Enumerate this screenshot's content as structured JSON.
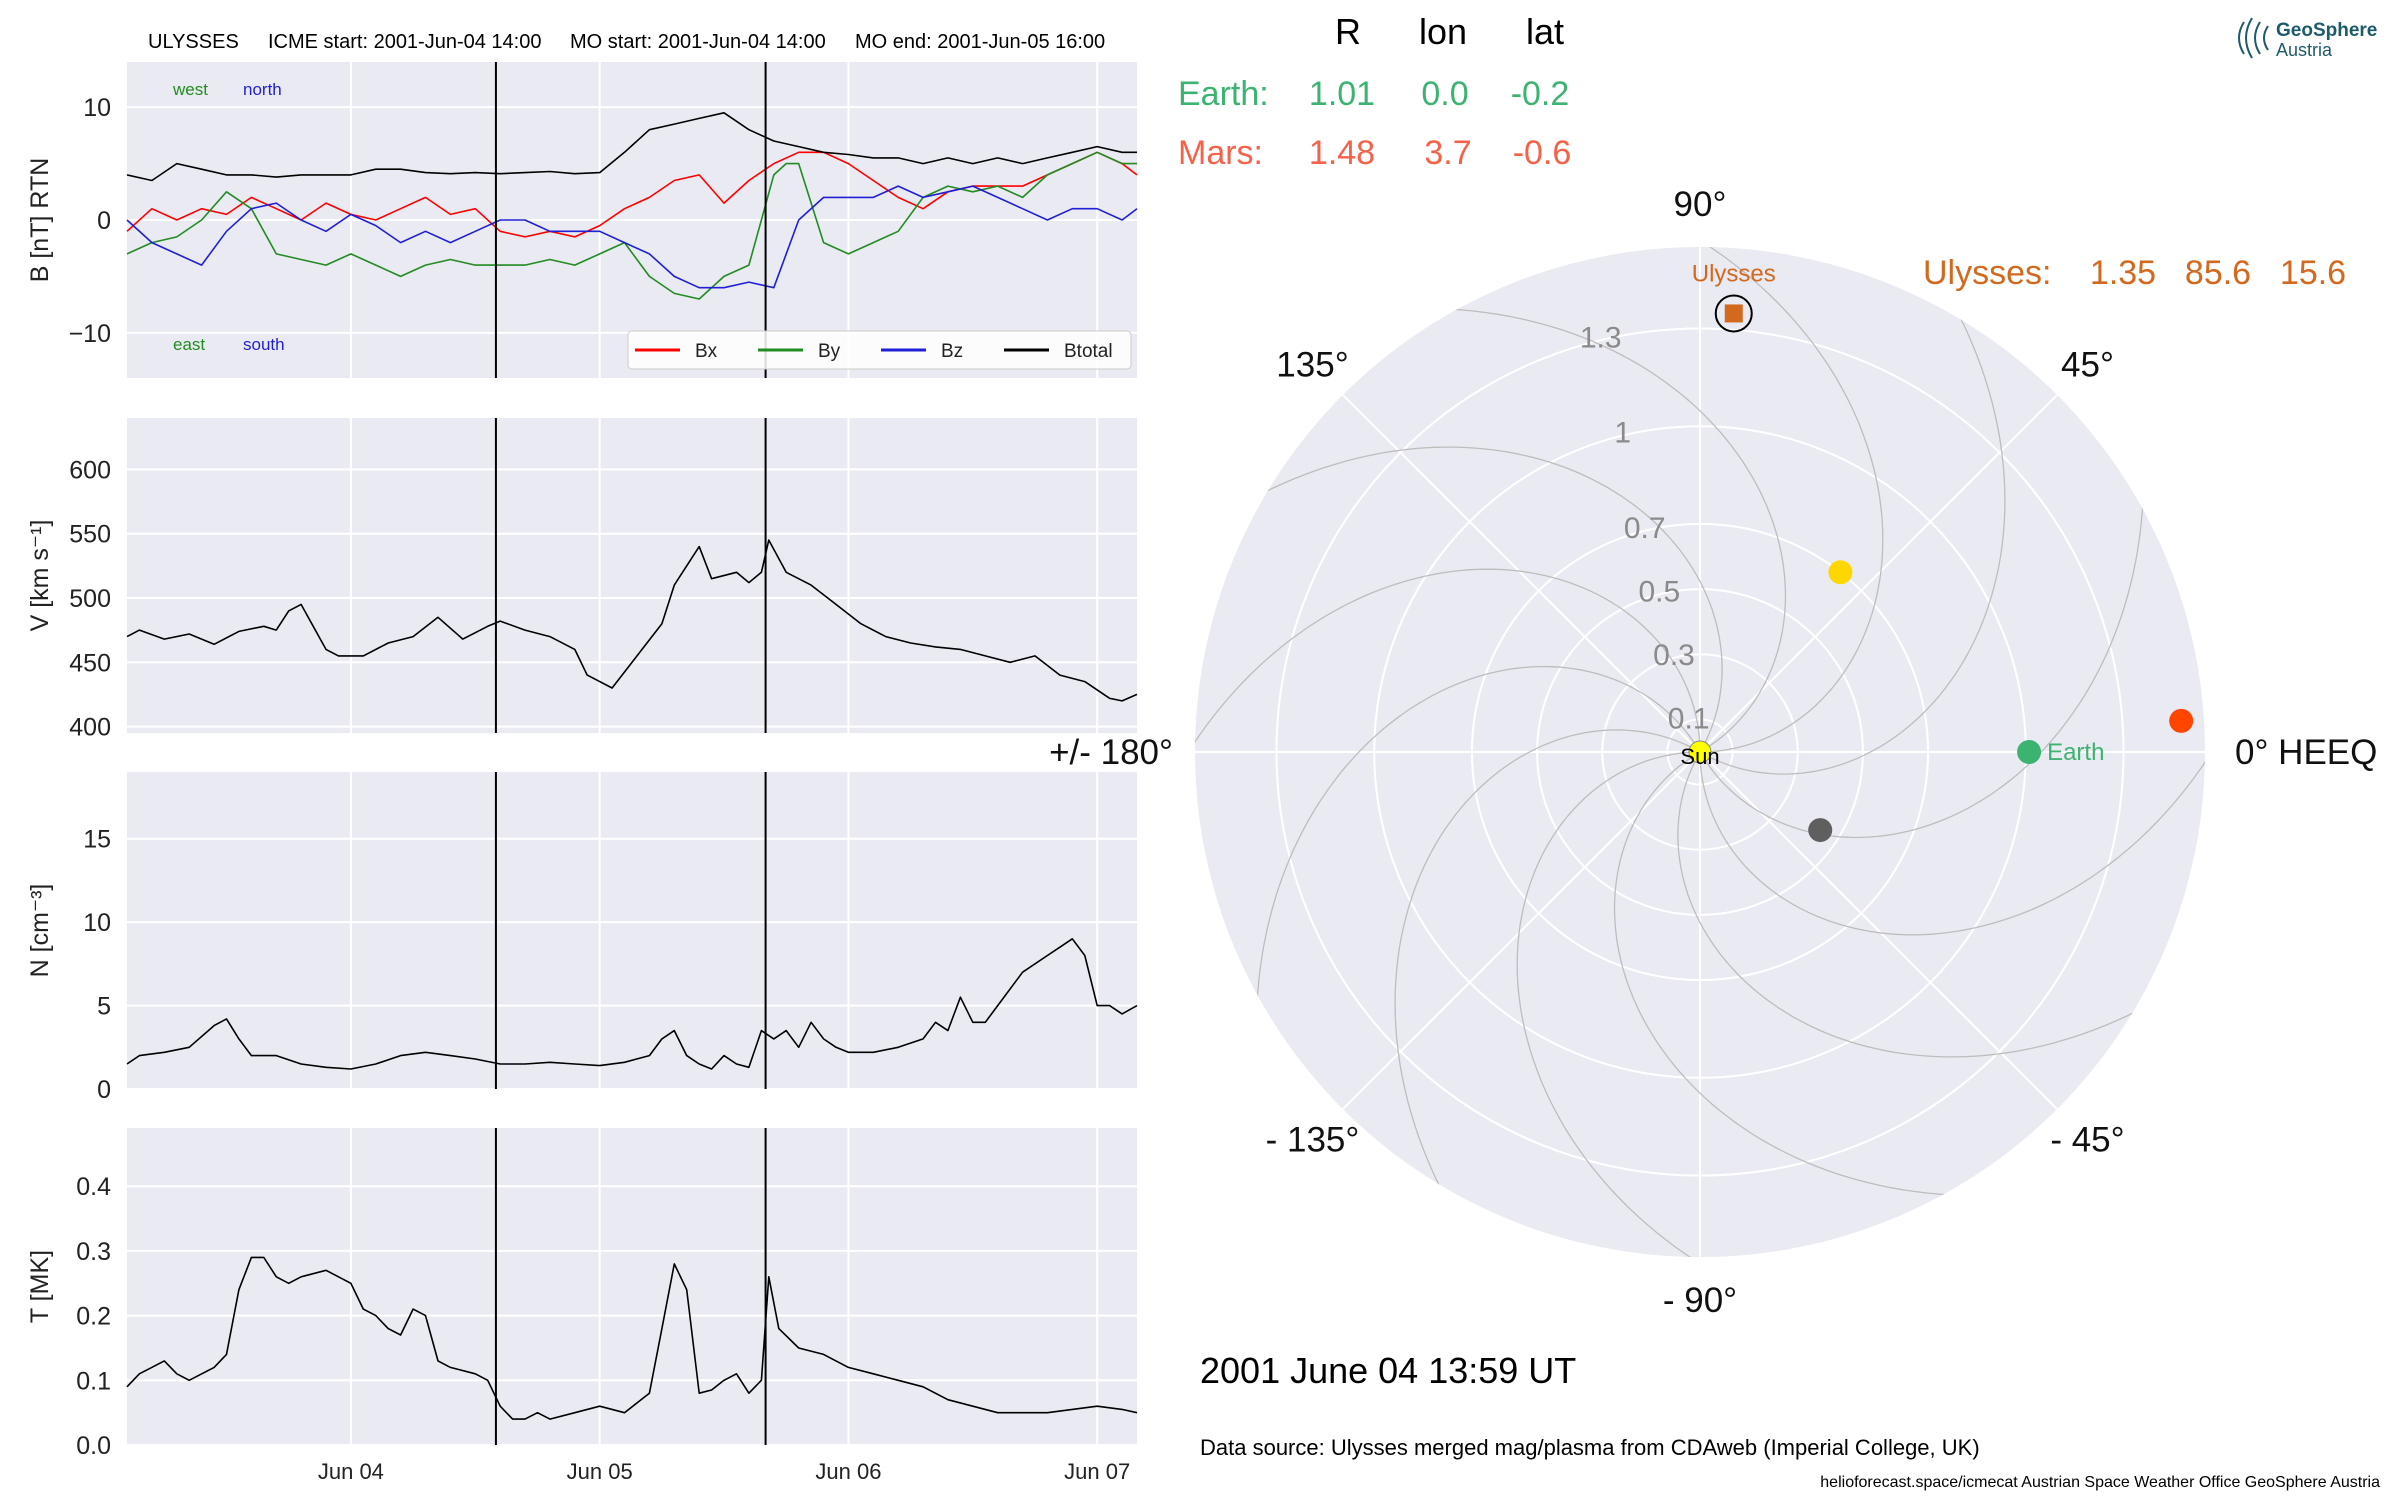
{
  "header": {
    "spacecraft": "ULYSSES",
    "icme_start": "ICME start: 2001-Jun-04 14:00",
    "mo_start": "MO start: 2001-Jun-04 14:00",
    "mo_end": "MO end: 2001-Jun-05 16:00"
  },
  "logo": {
    "line1": "GeoSphere",
    "line2": "Austria"
  },
  "positions_table": {
    "headers": [
      "R",
      "lon",
      "lat"
    ],
    "rows": [
      {
        "label": "Earth:",
        "R": "1.01",
        "lon": "0.0",
        "lat": "-0.2",
        "color": "#3cb371"
      },
      {
        "label": "Mars:",
        "R": "1.48",
        "lon": "3.7",
        "lat": "-0.6",
        "color": "#f4624a"
      }
    ],
    "ulysses": {
      "label": "Ulysses:",
      "R": "1.35",
      "lon": "85.6",
      "lat": "15.6",
      "color": "#d2691e"
    }
  },
  "timestamp": "2001 June 04  13:59 UT",
  "data_source": "Data source: Ulysses merged mag/plasma from CDAweb (Imperial College, UK)",
  "footer": "helioforecast.space/icmecat   Austrian Space Weather Office   GeoSphere Austria",
  "chart_data": [
    {
      "type": "line",
      "panel": "magnetic-field",
      "ylabel": "B [nT] RTN",
      "ylim": [
        -14,
        14
      ],
      "yticks": [
        10,
        0,
        -10
      ],
      "ytick_labels": [
        "10",
        "0",
        "−10"
      ],
      "xlim": [
        3.1,
        7.16
      ],
      "xticks": [
        4,
        5,
        6,
        7
      ],
      "xtick_labels": [
        "Jun 04",
        "Jun 05",
        "Jun 06",
        "Jun 07"
      ],
      "x_unit": "day of June 2001",
      "vlines": [
        4.583,
        5.667
      ],
      "labels": [
        {
          "text": "west",
          "color": "#228b22",
          "pos": "top-left"
        },
        {
          "text": "north",
          "color": "#1f1fd6",
          "pos": "top-left"
        },
        {
          "text": "east",
          "color": "#228b22",
          "pos": "bottom-left"
        },
        {
          "text": "south",
          "color": "#1f1fd6",
          "pos": "bottom-left"
        }
      ],
      "legend_position": "lower-right",
      "series": [
        {
          "name": "Bx",
          "color": "#ff0000",
          "x": [
            3.1,
            3.2,
            3.3,
            3.4,
            3.5,
            3.6,
            3.7,
            3.8,
            3.9,
            4.0,
            4.1,
            4.2,
            4.3,
            4.4,
            4.5,
            4.6,
            4.7,
            4.8,
            4.9,
            5.0,
            5.1,
            5.2,
            5.3,
            5.4,
            5.5,
            5.6,
            5.7,
            5.8,
            5.9,
            6.0,
            6.1,
            6.2,
            6.3,
            6.4,
            6.5,
            6.6,
            6.7,
            6.8,
            6.9,
            7.0,
            7.1,
            7.16
          ],
          "values": [
            -1,
            1,
            0,
            1,
            0.5,
            2,
            1,
            0,
            1.5,
            0.5,
            0,
            1,
            2,
            0.5,
            1,
            -1,
            -1.5,
            -1,
            -1.5,
            -0.5,
            1,
            2,
            3.5,
            4,
            1.5,
            3.5,
            5,
            6,
            6,
            5,
            3.5,
            2,
            1,
            2.5,
            3,
            3,
            3,
            4,
            5,
            6,
            5,
            4
          ]
        },
        {
          "name": "By",
          "color": "#228b22",
          "x": [
            3.1,
            3.2,
            3.3,
            3.4,
            3.5,
            3.6,
            3.7,
            3.8,
            3.9,
            4.0,
            4.1,
            4.2,
            4.3,
            4.4,
            4.5,
            4.6,
            4.7,
            4.8,
            4.9,
            5.0,
            5.1,
            5.2,
            5.3,
            5.4,
            5.5,
            5.6,
            5.65,
            5.7,
            5.75,
            5.8,
            5.9,
            6.0,
            6.1,
            6.2,
            6.3,
            6.4,
            6.5,
            6.6,
            6.7,
            6.8,
            6.9,
            7.0,
            7.1,
            7.16
          ],
          "values": [
            -3,
            -2,
            -1.5,
            0,
            2.5,
            1,
            -3,
            -3.5,
            -4,
            -3,
            -4,
            -5,
            -4,
            -3.5,
            -4,
            -4,
            -4,
            -3.5,
            -4,
            -3,
            -2,
            -5,
            -6.5,
            -7,
            -5,
            -4,
            0,
            4,
            5,
            5,
            -2,
            -3,
            -2,
            -1,
            2,
            3,
            2.5,
            3,
            2,
            4,
            5,
            6,
            5,
            5
          ]
        },
        {
          "name": "Bz",
          "color": "#1f1fd6",
          "x": [
            3.1,
            3.2,
            3.3,
            3.4,
            3.5,
            3.6,
            3.7,
            3.8,
            3.9,
            4.0,
            4.1,
            4.2,
            4.3,
            4.4,
            4.5,
            4.6,
            4.7,
            4.8,
            4.9,
            5.0,
            5.1,
            5.2,
            5.3,
            5.4,
            5.5,
            5.6,
            5.7,
            5.8,
            5.9,
            6.0,
            6.1,
            6.2,
            6.3,
            6.4,
            6.5,
            6.6,
            6.7,
            6.8,
            6.9,
            7.0,
            7.1,
            7.16
          ],
          "values": [
            0,
            -2,
            -3,
            -4,
            -1,
            1,
            1.5,
            0,
            -1,
            0.5,
            -0.5,
            -2,
            -1,
            -2,
            -1,
            0,
            0,
            -1,
            -1,
            -1,
            -2,
            -3,
            -5,
            -6,
            -6,
            -5.5,
            -6,
            0,
            2,
            2,
            2,
            3,
            2,
            2.5,
            3,
            2,
            1,
            0,
            1,
            1,
            0,
            1
          ]
        },
        {
          "name": "Btotal",
          "color": "#000000",
          "x": [
            3.1,
            3.2,
            3.3,
            3.4,
            3.5,
            3.6,
            3.7,
            3.8,
            3.9,
            4.0,
            4.1,
            4.2,
            4.3,
            4.4,
            4.5,
            4.6,
            4.7,
            4.8,
            4.9,
            5.0,
            5.1,
            5.2,
            5.3,
            5.4,
            5.5,
            5.6,
            5.7,
            5.8,
            5.9,
            6.0,
            6.1,
            6.2,
            6.3,
            6.4,
            6.5,
            6.6,
            6.7,
            6.8,
            6.9,
            7.0,
            7.1,
            7.16
          ],
          "values": [
            4,
            3.5,
            5,
            4.5,
            4,
            4,
            3.8,
            4,
            4,
            4,
            4.5,
            4.5,
            4.2,
            4.1,
            4.2,
            4.1,
            4.2,
            4.3,
            4.1,
            4.2,
            6,
            8,
            8.5,
            9,
            9.5,
            8,
            7,
            6.5,
            6,
            5.8,
            5.5,
            5.5,
            5,
            5.5,
            5,
            5.5,
            5,
            5.5,
            6,
            6.5,
            6,
            6
          ]
        }
      ]
    },
    {
      "type": "line",
      "panel": "speed",
      "ylabel": "V [km s⁻¹]",
      "ylim": [
        395,
        640
      ],
      "yticks": [
        400,
        450,
        500,
        550,
        600
      ],
      "xlim": [
        3.1,
        7.16
      ],
      "xticks": [
        4,
        5,
        6,
        7
      ],
      "vlines": [
        4.583,
        5.667
      ],
      "series": [
        {
          "name": "V",
          "color": "#000000",
          "x": [
            3.1,
            3.15,
            3.25,
            3.35,
            3.45,
            3.55,
            3.65,
            3.7,
            3.75,
            3.8,
            3.9,
            3.95,
            4.05,
            4.15,
            4.25,
            4.35,
            4.45,
            4.55,
            4.6,
            4.7,
            4.8,
            4.9,
            4.95,
            5.05,
            5.15,
            5.25,
            5.3,
            5.4,
            5.45,
            5.55,
            5.6,
            5.65,
            5.68,
            5.75,
            5.85,
            5.95,
            6.05,
            6.15,
            6.25,
            6.35,
            6.45,
            6.55,
            6.65,
            6.75,
            6.85,
            6.95,
            7.05,
            7.1,
            7.16
          ],
          "values": [
            470,
            475,
            468,
            472,
            464,
            474,
            478,
            475,
            490,
            495,
            460,
            455,
            455,
            465,
            470,
            485,
            468,
            478,
            482,
            475,
            470,
            460,
            440,
            430,
            455,
            480,
            510,
            540,
            515,
            520,
            512,
            520,
            545,
            520,
            510,
            495,
            480,
            470,
            465,
            462,
            460,
            455,
            450,
            455,
            440,
            435,
            422,
            420,
            425
          ]
        }
      ]
    },
    {
      "type": "line",
      "panel": "density",
      "ylabel": "N [cm⁻³]",
      "ylim": [
        0,
        19
      ],
      "yticks": [
        0,
        5,
        10,
        15
      ],
      "xlim": [
        3.1,
        7.16
      ],
      "xticks": [
        4,
        5,
        6,
        7
      ],
      "vlines": [
        4.583,
        5.667
      ],
      "series": [
        {
          "name": "N",
          "color": "#000000",
          "x": [
            3.1,
            3.15,
            3.25,
            3.35,
            3.45,
            3.5,
            3.55,
            3.6,
            3.7,
            3.8,
            3.9,
            4.0,
            4.1,
            4.2,
            4.3,
            4.4,
            4.5,
            4.6,
            4.7,
            4.8,
            4.9,
            5.0,
            5.1,
            5.2,
            5.25,
            5.3,
            5.35,
            5.4,
            5.45,
            5.5,
            5.55,
            5.6,
            5.65,
            5.7,
            5.75,
            5.8,
            5.85,
            5.9,
            5.95,
            6.0,
            6.1,
            6.2,
            6.3,
            6.35,
            6.4,
            6.45,
            6.5,
            6.55,
            6.6,
            6.7,
            6.8,
            6.85,
            6.9,
            6.95,
            7.0,
            7.05,
            7.1,
            7.16
          ],
          "values": [
            1.5,
            2,
            2.2,
            2.5,
            3.8,
            4.2,
            3,
            2,
            2,
            1.5,
            1.3,
            1.2,
            1.5,
            2,
            2.2,
            2,
            1.8,
            1.5,
            1.5,
            1.6,
            1.5,
            1.4,
            1.6,
            2,
            3,
            3.5,
            2,
            1.5,
            1.2,
            2,
            1.5,
            1.3,
            3.5,
            3,
            3.5,
            2.5,
            4,
            3,
            2.5,
            2.2,
            2.2,
            2.5,
            3,
            4,
            3.5,
            5.5,
            4,
            4,
            5,
            7,
            8,
            8.5,
            9,
            8,
            5,
            5,
            4.5,
            5
          ]
        }
      ]
    },
    {
      "type": "line",
      "panel": "temperature",
      "ylabel": "T [MK]",
      "ylim": [
        0,
        0.49
      ],
      "yticks": [
        0.0,
        0.1,
        0.2,
        0.3,
        0.4
      ],
      "ytick_labels": [
        "0.0",
        "0.1",
        "0.2",
        "0.3",
        "0.4"
      ],
      "xlim": [
        3.1,
        7.16
      ],
      "xticks": [
        4,
        5,
        6,
        7
      ],
      "xtick_labels": [
        "Jun 04",
        "Jun 05",
        "Jun 06",
        "Jun 07"
      ],
      "vlines": [
        4.583,
        5.667
      ],
      "series": [
        {
          "name": "T",
          "color": "#000000",
          "x": [
            3.1,
            3.15,
            3.25,
            3.3,
            3.35,
            3.45,
            3.5,
            3.55,
            3.6,
            3.65,
            3.7,
            3.75,
            3.8,
            3.9,
            4.0,
            4.05,
            4.1,
            4.15,
            4.2,
            4.25,
            4.3,
            4.35,
            4.4,
            4.5,
            4.55,
            4.6,
            4.65,
            4.7,
            4.75,
            4.8,
            4.9,
            5.0,
            5.1,
            5.2,
            5.25,
            5.3,
            5.35,
            5.4,
            5.45,
            5.5,
            5.55,
            5.6,
            5.65,
            5.68,
            5.72,
            5.8,
            5.9,
            6.0,
            6.1,
            6.2,
            6.3,
            6.4,
            6.5,
            6.6,
            6.7,
            6.8,
            6.9,
            7.0,
            7.1,
            7.16
          ],
          "values": [
            0.09,
            0.11,
            0.13,
            0.11,
            0.1,
            0.12,
            0.14,
            0.24,
            0.29,
            0.29,
            0.26,
            0.25,
            0.26,
            0.27,
            0.25,
            0.21,
            0.2,
            0.18,
            0.17,
            0.21,
            0.2,
            0.13,
            0.12,
            0.11,
            0.1,
            0.06,
            0.04,
            0.04,
            0.05,
            0.04,
            0.05,
            0.06,
            0.05,
            0.08,
            0.18,
            0.28,
            0.24,
            0.08,
            0.085,
            0.1,
            0.11,
            0.08,
            0.1,
            0.26,
            0.18,
            0.15,
            0.14,
            0.12,
            0.11,
            0.1,
            0.09,
            0.07,
            0.06,
            0.05,
            0.05,
            0.05,
            0.055,
            0.06,
            0.055,
            0.05
          ]
        }
      ]
    },
    {
      "type": "scatter",
      "panel": "polar-heeq",
      "projection": "polar",
      "rlim": [
        0,
        1.55
      ],
      "r_tick_values": [
        0.1,
        0.3,
        0.5,
        0.7,
        1.0,
        1.3
      ],
      "angle_labels": [
        {
          "angle": 0,
          "text": "0° HEEQ"
        },
        {
          "angle": 45,
          "text": "45°"
        },
        {
          "angle": 90,
          "text": "90°"
        },
        {
          "angle": 135,
          "text": "135°"
        },
        {
          "angle": 180,
          "text": "+/- 180°"
        },
        {
          "angle": -135,
          "text": "- 135°"
        },
        {
          "angle": -90,
          "text": "- 90°"
        },
        {
          "angle": -45,
          "text": "- 45°"
        }
      ],
      "points": [
        {
          "name": "Sun",
          "r": 0,
          "lon": 0,
          "color": "#ffff00",
          "shape": "circle"
        },
        {
          "name": "Earth",
          "r": 1.01,
          "lon": 0.0,
          "color": "#3cb371",
          "shape": "circle"
        },
        {
          "name": "Mars",
          "r": 1.48,
          "lon": 3.7,
          "color": "#ff4500",
          "shape": "circle"
        },
        {
          "name": "Ulysses",
          "r": 1.35,
          "lon": 85.6,
          "color": "#d2691e",
          "shape": "square"
        },
        {
          "name": "",
          "r": 0.7,
          "lon": 52,
          "color": "#ffd700",
          "shape": "circle"
        },
        {
          "name": "",
          "r": 0.44,
          "lon": -33,
          "color": "#5f5f5f",
          "shape": "circle"
        }
      ],
      "point_labels": [
        "Sun",
        "Earth",
        "Ulysses"
      ]
    }
  ]
}
